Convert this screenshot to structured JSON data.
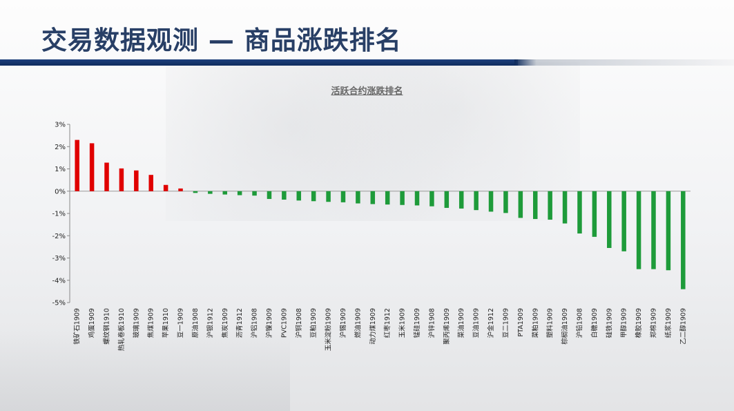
{
  "page": {
    "title": "交易数据观测 — 商品涨跌排名"
  },
  "colors": {
    "title": "#283f66",
    "up": "#e00000",
    "down": "#1e9b3a",
    "rule": "#12346c"
  },
  "chart_data": {
    "type": "bar",
    "title": "活跃合约涨跌排名",
    "xlabel": "",
    "ylabel": "",
    "ylim": [
      -5,
      3
    ],
    "yticks": [
      "3%",
      "2%",
      "1%",
      "0%",
      "-1%",
      "-2%",
      "-3%",
      "-4%",
      "-5%"
    ],
    "ytick_values": [
      3,
      2,
      1,
      0,
      -1,
      -2,
      -3,
      -4,
      -5
    ],
    "grid": false,
    "categories": [
      "铁矿石1909",
      "鸡蛋1909",
      "螺纹钢1910",
      "热轧卷板1910",
      "玻璃1909",
      "焦煤1909",
      "苹果1910",
      "豆一1909",
      "原油1908",
      "沪银1912",
      "焦炭1909",
      "沥青1912",
      "沪铝1908",
      "沪镍1909",
      "PVC1909",
      "沪铜1908",
      "豆粕1909",
      "玉米淀粉1909",
      "沪锡1909",
      "燃油1909",
      "动力煤1909",
      "红枣1912",
      "玉米1909",
      "锰硅1909",
      "沪锌1908",
      "聚丙烯1909",
      "菜油1909",
      "豆油1909",
      "沪金1912",
      "豆二1909",
      "PTA1909",
      "菜粕1909",
      "塑料1909",
      "棕榈油1909",
      "沪铅1908",
      "白糖1909",
      "硅铁1909",
      "甲醇1909",
      "橡胶1909",
      "郑棉1909",
      "纸浆1909",
      "乙二醇1909"
    ],
    "values": [
      2.3,
      2.15,
      1.28,
      1.02,
      0.93,
      0.73,
      0.28,
      0.12,
      -0.08,
      -0.12,
      -0.15,
      -0.18,
      -0.2,
      -0.35,
      -0.38,
      -0.42,
      -0.45,
      -0.48,
      -0.5,
      -0.55,
      -0.58,
      -0.6,
      -0.62,
      -0.64,
      -0.68,
      -0.75,
      -0.78,
      -0.85,
      -0.92,
      -0.98,
      -1.2,
      -1.25,
      -1.28,
      -1.45,
      -1.9,
      -2.05,
      -2.55,
      -2.7,
      -3.5,
      -3.5,
      -3.55,
      -4.4
    ]
  }
}
